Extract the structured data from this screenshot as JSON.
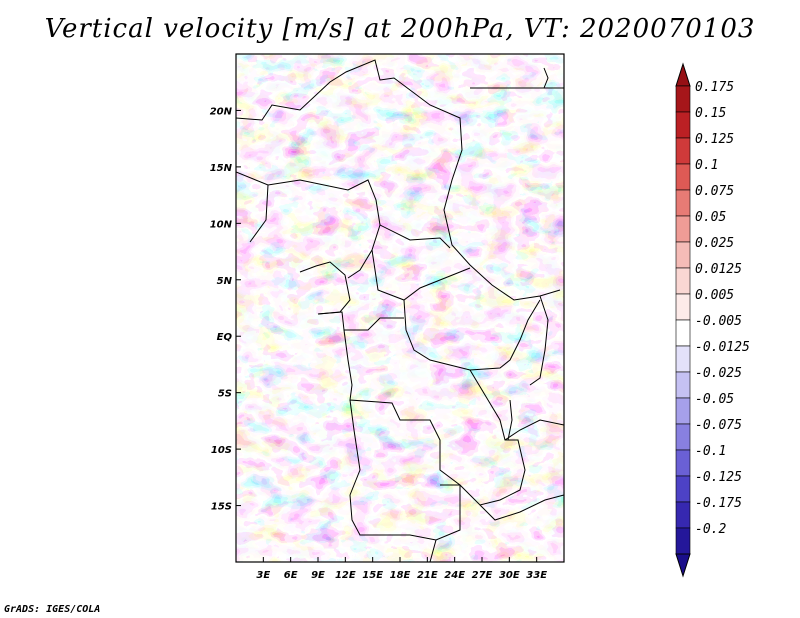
{
  "title": "Vertical velocity [m/s] at 200hPa, VT: 2020070103",
  "footer": "GrADS: IGES/COLA",
  "map": {
    "lon_range": [
      0,
      36
    ],
    "lat_range": [
      -20,
      25
    ],
    "lat_ticks": [
      {
        "value": 20,
        "label": "20N"
      },
      {
        "value": 15,
        "label": "15N"
      },
      {
        "value": 10,
        "label": "10N"
      },
      {
        "value": 5,
        "label": "5N"
      },
      {
        "value": 0,
        "label": "EQ"
      },
      {
        "value": -5,
        "label": "5S"
      },
      {
        "value": -10,
        "label": "10S"
      },
      {
        "value": -15,
        "label": "15S"
      }
    ],
    "lon_ticks": [
      {
        "value": 3,
        "label": "3E"
      },
      {
        "value": 6,
        "label": "6E"
      },
      {
        "value": 9,
        "label": "9E"
      },
      {
        "value": 12,
        "label": "12E"
      },
      {
        "value": 15,
        "label": "15E"
      },
      {
        "value": 18,
        "label": "18E"
      },
      {
        "value": 21,
        "label": "21E"
      },
      {
        "value": 24,
        "label": "24E"
      },
      {
        "value": 27,
        "label": "27E"
      },
      {
        "value": 30,
        "label": "30E"
      },
      {
        "value": 33,
        "label": "33E"
      }
    ]
  },
  "colorbar": {
    "levels": [
      {
        "label": "0.175",
        "color": "#a6161a"
      },
      {
        "label": "0.15",
        "color": "#bb2024"
      },
      {
        "label": "0.125",
        "color": "#cf3a3a"
      },
      {
        "label": "0.1",
        "color": "#de5a55"
      },
      {
        "label": "0.075",
        "color": "#e77b75"
      },
      {
        "label": "0.05",
        "color": "#ef9c96"
      },
      {
        "label": "0.025",
        "color": "#f5bcb7"
      },
      {
        "label": "0.0125",
        "color": "#fad7d3"
      },
      {
        "label": "0.005",
        "color": "#fdebe9"
      },
      {
        "label": "-0.005",
        "color": "#ffffff"
      },
      {
        "label": "-0.0125",
        "color": "#e3e1fa"
      },
      {
        "label": "-0.025",
        "color": "#c5c1f3"
      },
      {
        "label": "-0.05",
        "color": "#a6a0ea"
      },
      {
        "label": "-0.075",
        "color": "#8880e0"
      },
      {
        "label": "-0.1",
        "color": "#6a60d5"
      },
      {
        "label": "-0.125",
        "color": "#4d42c6"
      },
      {
        "label": "-0.175",
        "color": "#3628b0"
      },
      {
        "label": "-0.2",
        "color": "#24179a"
      }
    ],
    "top_color": "#961015",
    "bottom_color": "#1a0e8a"
  }
}
